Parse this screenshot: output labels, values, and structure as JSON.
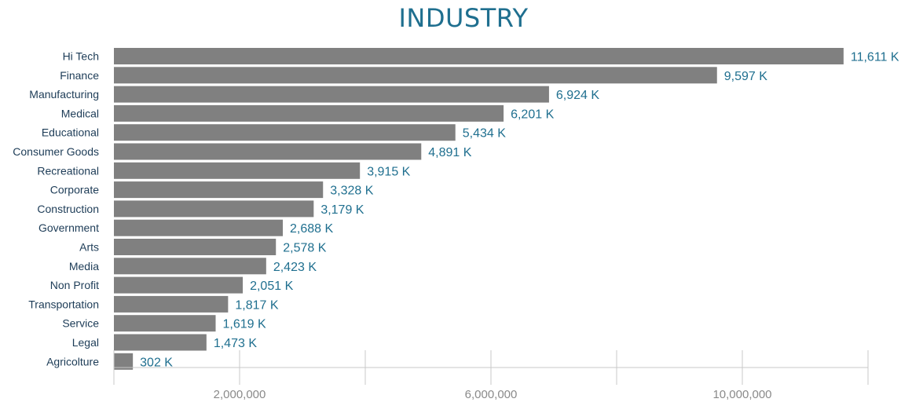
{
  "colors": {
    "bar": "#808080",
    "title": "#1f6f8f",
    "value_label": "#1f6f8f",
    "category_label": "#1d3c57",
    "axis": "#c8c8c8",
    "tick_label": "#8a8a8a"
  },
  "chart_data": {
    "type": "bar",
    "orientation": "horizontal",
    "title": "INDUSTRY",
    "xlabel": "",
    "ylabel": "",
    "xlim": [
      0,
      12000000
    ],
    "grid": false,
    "categories": [
      "Hi Tech",
      "Finance",
      "Manufacturing",
      "Medical",
      "Educational",
      "Consumer Goods",
      "Recreational",
      "Corporate",
      "Construction",
      "Government",
      "Arts",
      "Media",
      "Non Profit",
      "Transportation",
      "Service",
      "Legal",
      "Agricolture"
    ],
    "values": [
      11611000,
      9597000,
      6924000,
      6201000,
      5434000,
      4891000,
      3915000,
      3328000,
      3179000,
      2688000,
      2578000,
      2423000,
      2051000,
      1817000,
      1619000,
      1473000,
      302000
    ],
    "data_labels": [
      "11,611 K",
      "9,597 K",
      "6,924 K",
      "6,201 K",
      "5,434 K",
      "4,891 K",
      "3,915 K",
      "3,328 K",
      "3,179 K",
      "2,688 K",
      "2,578 K",
      "2,423 K",
      "2,051 K",
      "1,817 K",
      "1,619 K",
      "1,473 K",
      "302 K"
    ],
    "x_ticks": [
      0,
      2000000,
      4000000,
      6000000,
      8000000,
      10000000,
      12000000
    ],
    "x_tick_labels": [
      {
        "value": 2000000,
        "label": "2,000,000"
      },
      {
        "value": 6000000,
        "label": "6,000,000"
      },
      {
        "value": 10000000,
        "label": "10,000,000"
      }
    ]
  }
}
